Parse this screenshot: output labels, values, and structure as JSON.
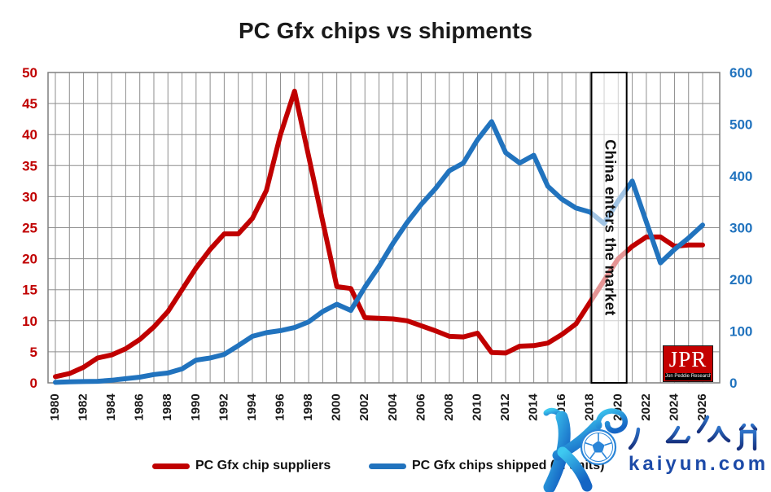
{
  "title": "PC Gfx chips vs shipments",
  "legend": [
    {
      "label": "PC Gfx chip suppliers",
      "color": "#C00000"
    },
    {
      "label": "PC Gfx chips shipped (M units)",
      "color": "#2173BE"
    }
  ],
  "annotation": {
    "label": "China enters the market",
    "from_year": 2018.1,
    "to_year": 2020.6
  },
  "logo": {
    "acronym": "JPR",
    "name": "Jon Peddie Research"
  },
  "watermark": {
    "cn": "开云体育",
    "url": "kaiyun.com"
  },
  "chart_data": {
    "type": "line",
    "title": "PC Gfx chips vs shipments",
    "x": [
      1980,
      1981,
      1982,
      1983,
      1984,
      1985,
      1986,
      1987,
      1988,
      1989,
      1990,
      1991,
      1992,
      1993,
      1994,
      1995,
      1996,
      1997,
      1998,
      1999,
      2000,
      2001,
      2002,
      2003,
      2004,
      2005,
      2006,
      2007,
      2008,
      2009,
      2010,
      2011,
      2012,
      2013,
      2014,
      2015,
      2016,
      2017,
      2018,
      2019,
      2020,
      2021,
      2022,
      2023,
      2024,
      2025,
      2026
    ],
    "x_ticks": [
      1980,
      1982,
      1984,
      1986,
      1988,
      1990,
      1992,
      1994,
      1996,
      1998,
      2000,
      2002,
      2004,
      2006,
      2008,
      2010,
      2012,
      2014,
      2016,
      2018,
      2020,
      2022,
      2024,
      2026
    ],
    "series": [
      {
        "name": "PC Gfx chip suppliers",
        "axis": "left",
        "color": "#C00000",
        "values": [
          1,
          1.5,
          2.5,
          4,
          4.5,
          5.5,
          7,
          9,
          11.5,
          15,
          18.5,
          21.5,
          24,
          24,
          26.5,
          31,
          40,
          47,
          36.5,
          26,
          15.5,
          15.2,
          10.5,
          10.4,
          10.3,
          10,
          9.2,
          8.4,
          7.5,
          7.4,
          8,
          4.9,
          4.8,
          5.9,
          6,
          6.4,
          7.8,
          9.5,
          13,
          16.5,
          20,
          22,
          23.5,
          23.5,
          22,
          22.2,
          22.2
        ]
      },
      {
        "name": "PC Gfx chips shipped (M units)",
        "axis": "right",
        "color": "#2173BE",
        "values": [
          1,
          2,
          2.5,
          3,
          5,
          8,
          11,
          16,
          19,
          27,
          44,
          48,
          55,
          72,
          90,
          97,
          101,
          107,
          118,
          138,
          152,
          140,
          185,
          225,
          270,
          310,
          345,
          375,
          410,
          425,
          470,
          505,
          445,
          425,
          440,
          380,
          355,
          338,
          330,
          308,
          352,
          390,
          311,
          232,
          258,
          280,
          305
        ]
      }
    ],
    "y_left": {
      "ticks": [
        0,
        5,
        10,
        15,
        20,
        25,
        30,
        35,
        40,
        45,
        50
      ],
      "range": [
        0,
        50
      ],
      "color": "#C00000"
    },
    "y_right": {
      "ticks": [
        0,
        100,
        200,
        300,
        400,
        500,
        600
      ],
      "range": [
        0,
        600
      ],
      "color": "#2173BE"
    },
    "grid": true,
    "grid_color": "#8E8E8E",
    "legend_position": "bottom"
  }
}
